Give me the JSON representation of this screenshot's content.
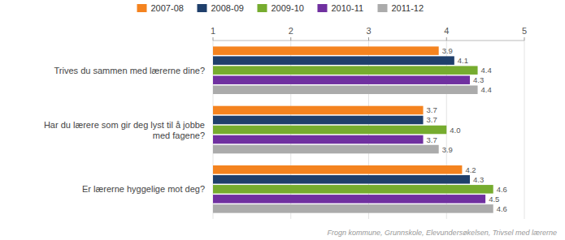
{
  "chart_data": {
    "type": "bar",
    "orientation": "horizontal",
    "categories": [
      "Trives du sammen med lærerne dine?",
      "Har du lærere som gir deg lyst til å jobbe\nmed fagene?",
      "Er lærerne hyggelige mot deg?"
    ],
    "series": [
      {
        "name": "2007-08",
        "color": "#F4831F",
        "values": [
          3.9,
          3.7,
          4.2
        ],
        "value_labels": [
          "3.9",
          "3.7",
          "4.2"
        ]
      },
      {
        "name": "2008-09",
        "color": "#1F3F6B",
        "values": [
          4.1,
          3.7,
          4.3
        ],
        "value_labels": [
          "4.1",
          "3.7",
          "4.3"
        ]
      },
      {
        "name": "2009-10",
        "color": "#76AC2F",
        "values": [
          4.4,
          4.0,
          4.6
        ],
        "value_labels": [
          "4.4",
          "4.0",
          "4.6"
        ]
      },
      {
        "name": "2010-11",
        "color": "#7030A0",
        "values": [
          4.3,
          3.7,
          4.5
        ],
        "value_labels": [
          "4.3",
          "3.7",
          "4.5"
        ]
      },
      {
        "name": "2011-12",
        "color": "#ABABAB",
        "values": [
          4.4,
          3.9,
          4.6
        ],
        "value_labels": [
          "4.4",
          "3.9",
          "4.6"
        ]
      }
    ],
    "xlim": [
      1,
      5
    ],
    "xticks": [
      1,
      2,
      3,
      4,
      5
    ],
    "grid": true,
    "data_labels": true,
    "legend": "top",
    "annotations": [
      "Frogn kommune, Grunnskole, Elevundersøkelsen, Trivsel med lærerne"
    ]
  }
}
